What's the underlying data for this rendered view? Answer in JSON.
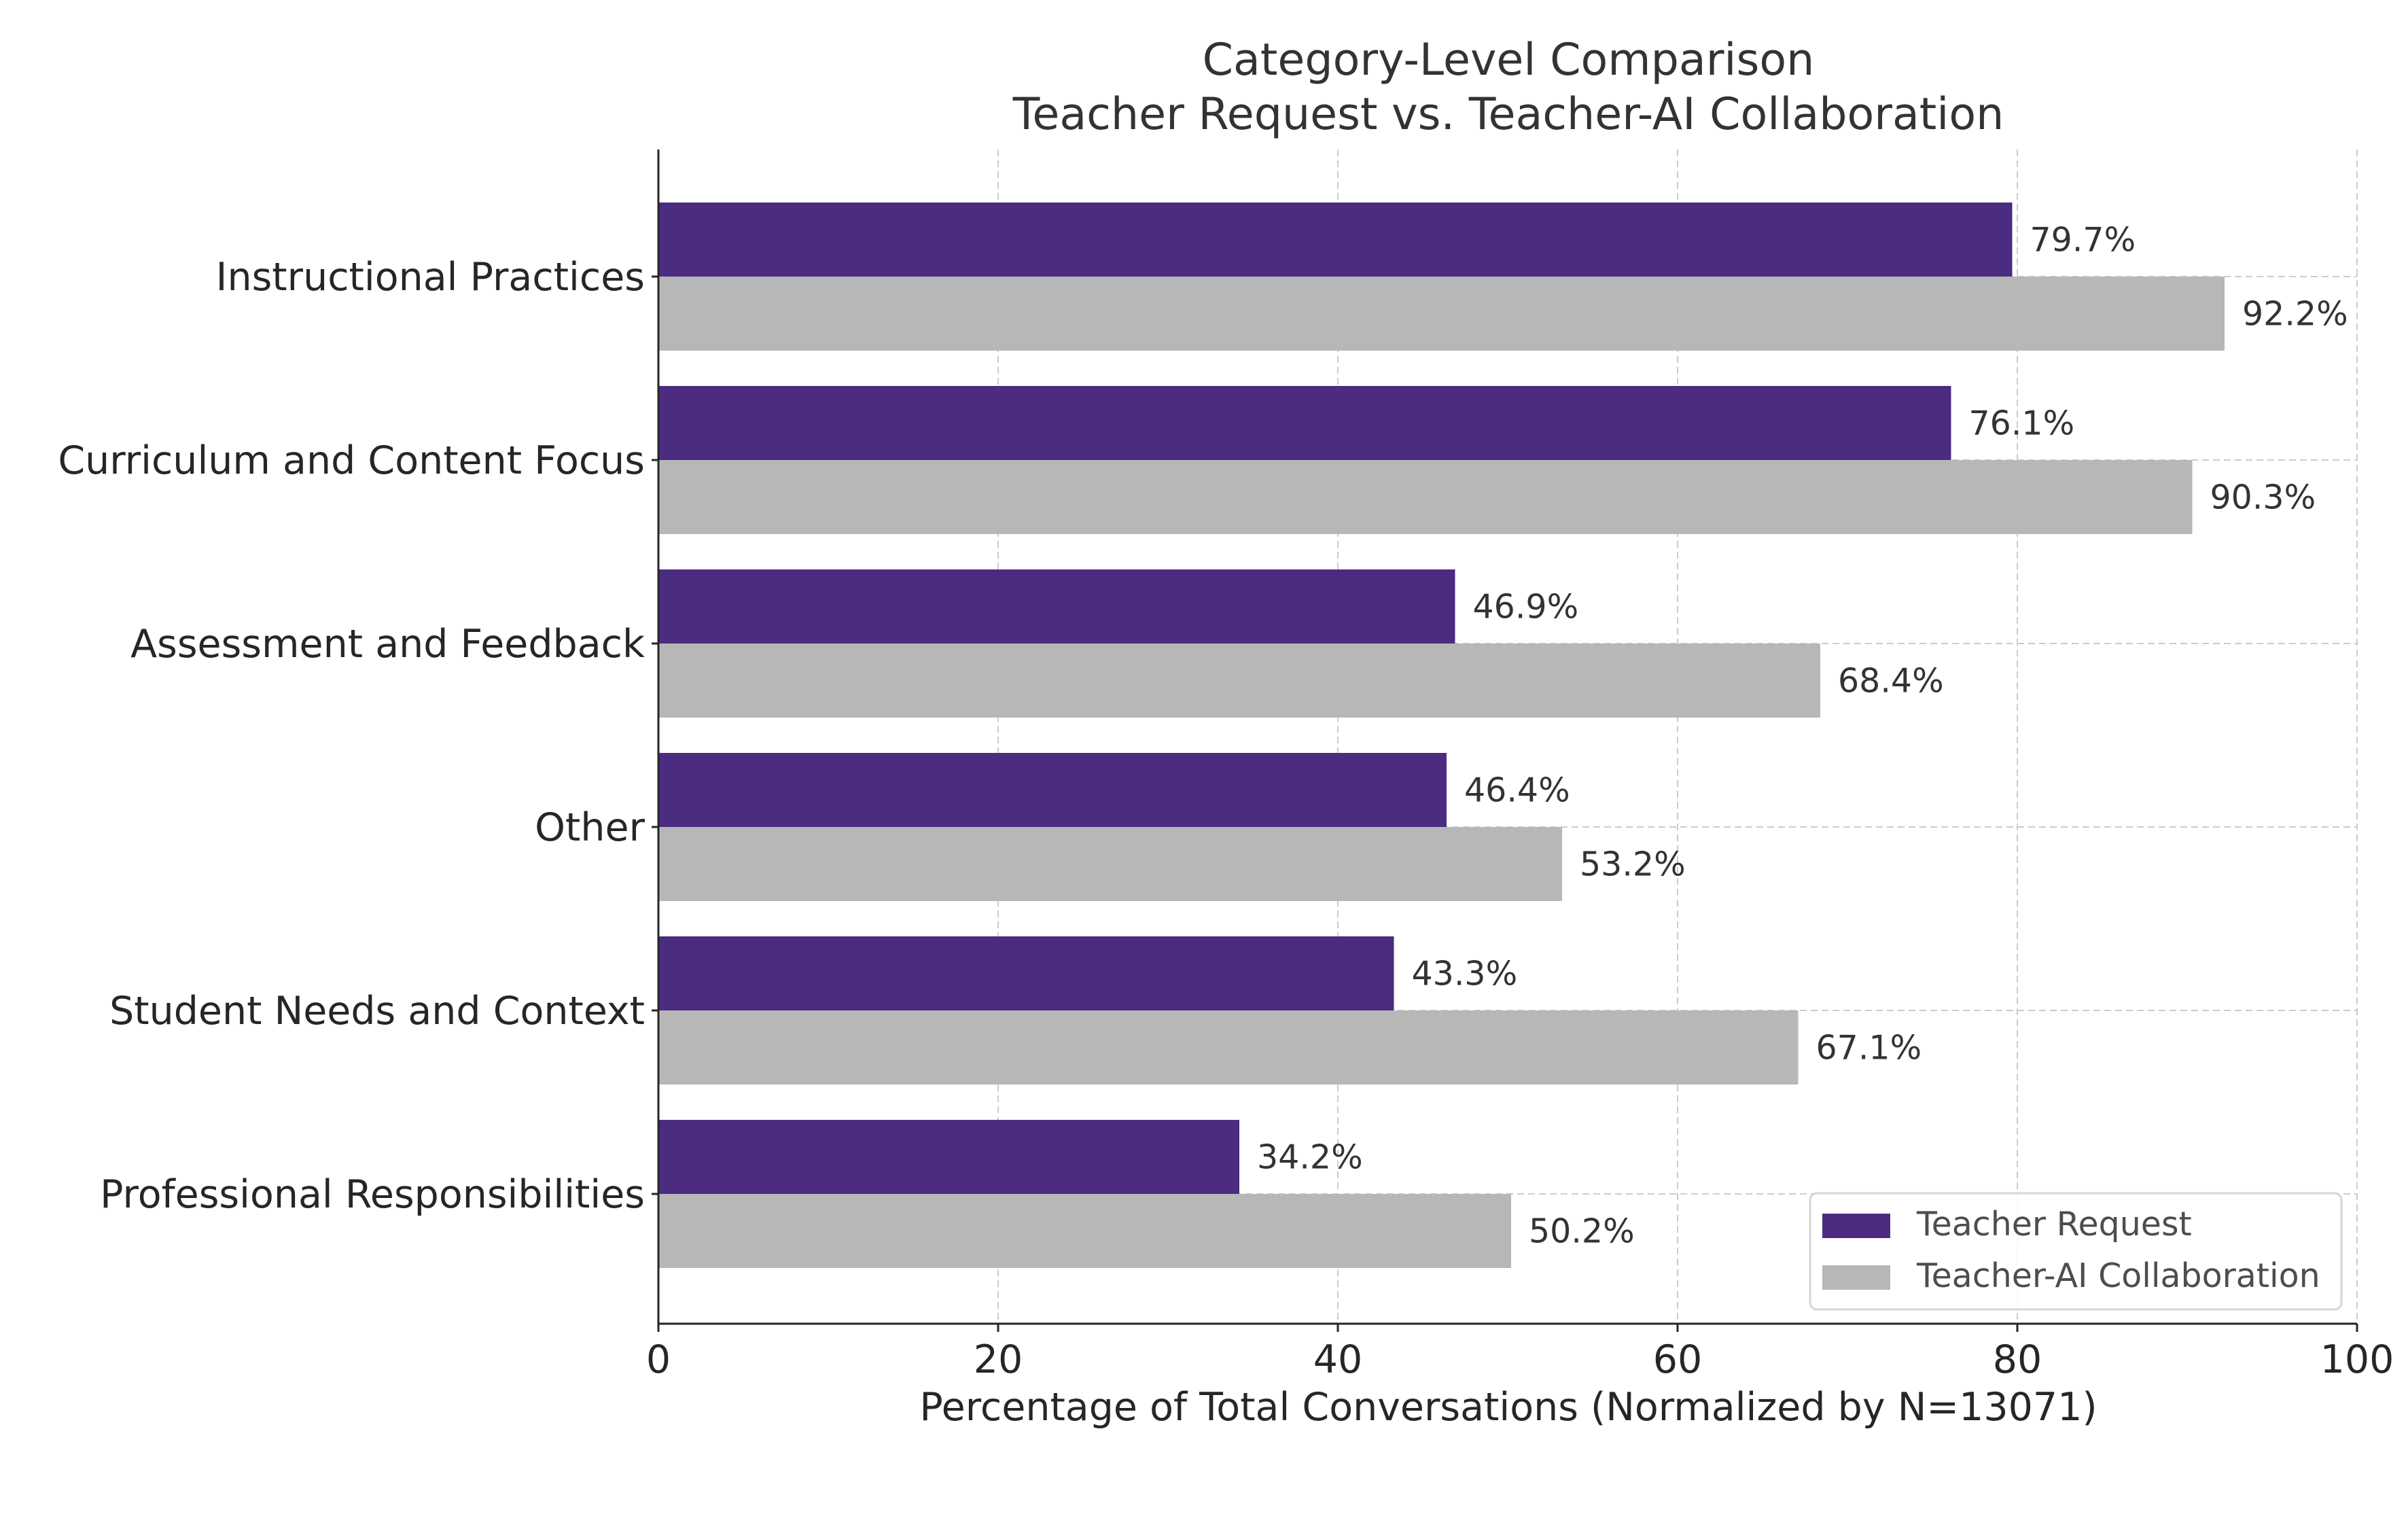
{
  "chart_data": {
    "type": "bar",
    "orientation": "horizontal",
    "title": "Category-Level Comparison",
    "subtitle": "Teacher Request vs. Teacher-AI Collaboration",
    "xlabel": "Percentage of Total Conversations (Normalized by N=13071)",
    "ylabel": "",
    "xlim": [
      0,
      100
    ],
    "xticks": [
      0,
      20,
      40,
      60,
      80,
      100
    ],
    "grid": true,
    "legend_position": "lower-right",
    "categories": [
      "Instructional Practices",
      "Curriculum and Content Focus",
      "Assessment and Feedback",
      "Other",
      "Student Needs and Context",
      "Professional Responsibilities"
    ],
    "series": [
      {
        "name": "Teacher Request",
        "color": "#4b2c80",
        "values": [
          79.7,
          76.1,
          46.9,
          46.4,
          43.3,
          34.2
        ],
        "labels": [
          "79.7%",
          "76.1%",
          "46.9%",
          "46.4%",
          "43.3%",
          "34.2%"
        ]
      },
      {
        "name": "Teacher-AI Collaboration",
        "color": "#b7b7b7",
        "values": [
          92.2,
          90.3,
          68.4,
          53.2,
          67.1,
          50.2
        ],
        "labels": [
          "92.2%",
          "90.3%",
          "68.4%",
          "53.2%",
          "67.1%",
          "50.2%"
        ]
      }
    ]
  }
}
